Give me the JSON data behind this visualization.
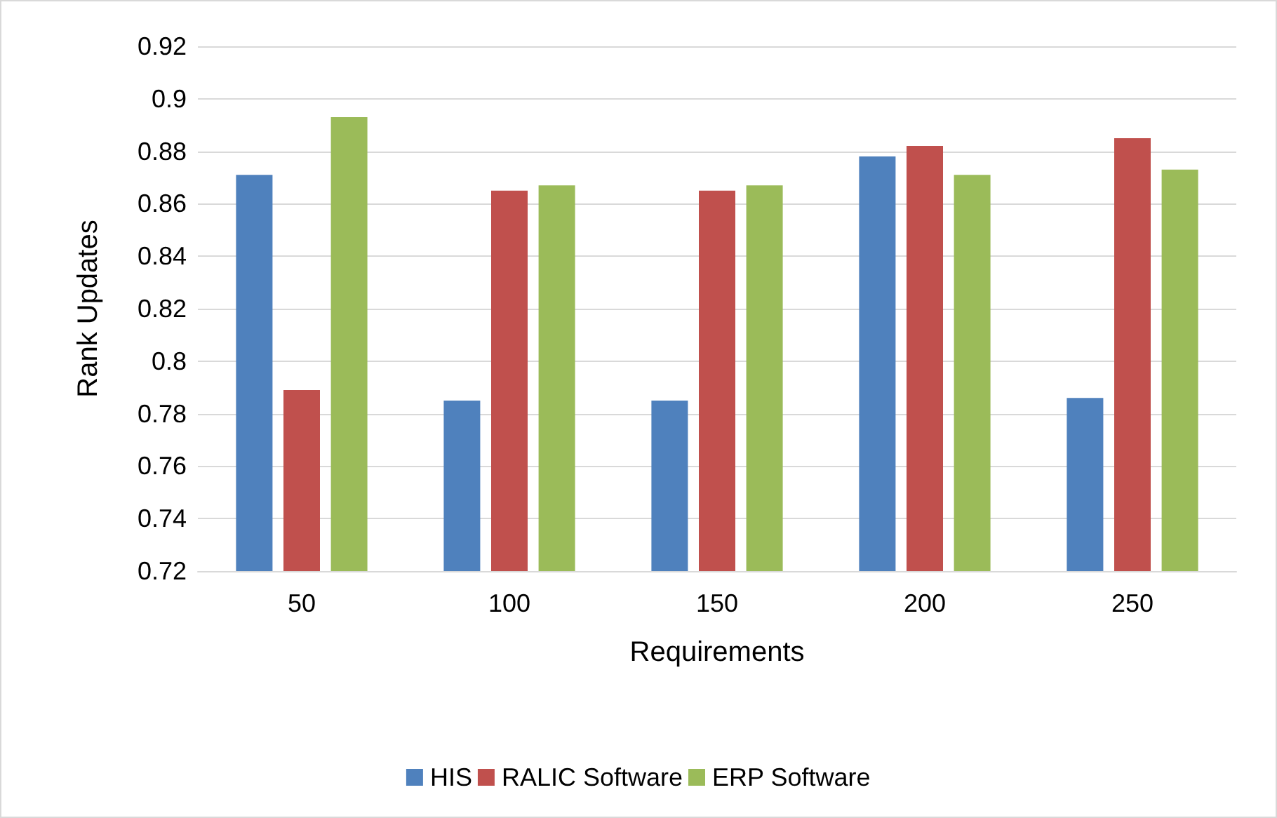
{
  "chart_data": {
    "type": "bar",
    "xlabel": "Requirements",
    "ylabel": "Rank Updates",
    "categories": [
      "50",
      "100",
      "150",
      "200",
      "250"
    ],
    "series": [
      {
        "name": "HIS",
        "color": "#4f81bd",
        "values": [
          0.871,
          0.785,
          0.785,
          0.878,
          0.786
        ]
      },
      {
        "name": "RALIC Software",
        "color": "#c0504d",
        "values": [
          0.789,
          0.865,
          0.865,
          0.882,
          0.885
        ]
      },
      {
        "name": "ERP Software",
        "color": "#9bbb59",
        "values": [
          0.893,
          0.867,
          0.867,
          0.871,
          0.873
        ]
      }
    ],
    "ylim": [
      0.72,
      0.92
    ],
    "yticks": [
      0.72,
      0.74,
      0.76,
      0.78,
      0.8,
      0.82,
      0.84,
      0.86,
      0.88,
      0.9,
      0.92
    ],
    "grid": "y",
    "legend": "bottom"
  }
}
